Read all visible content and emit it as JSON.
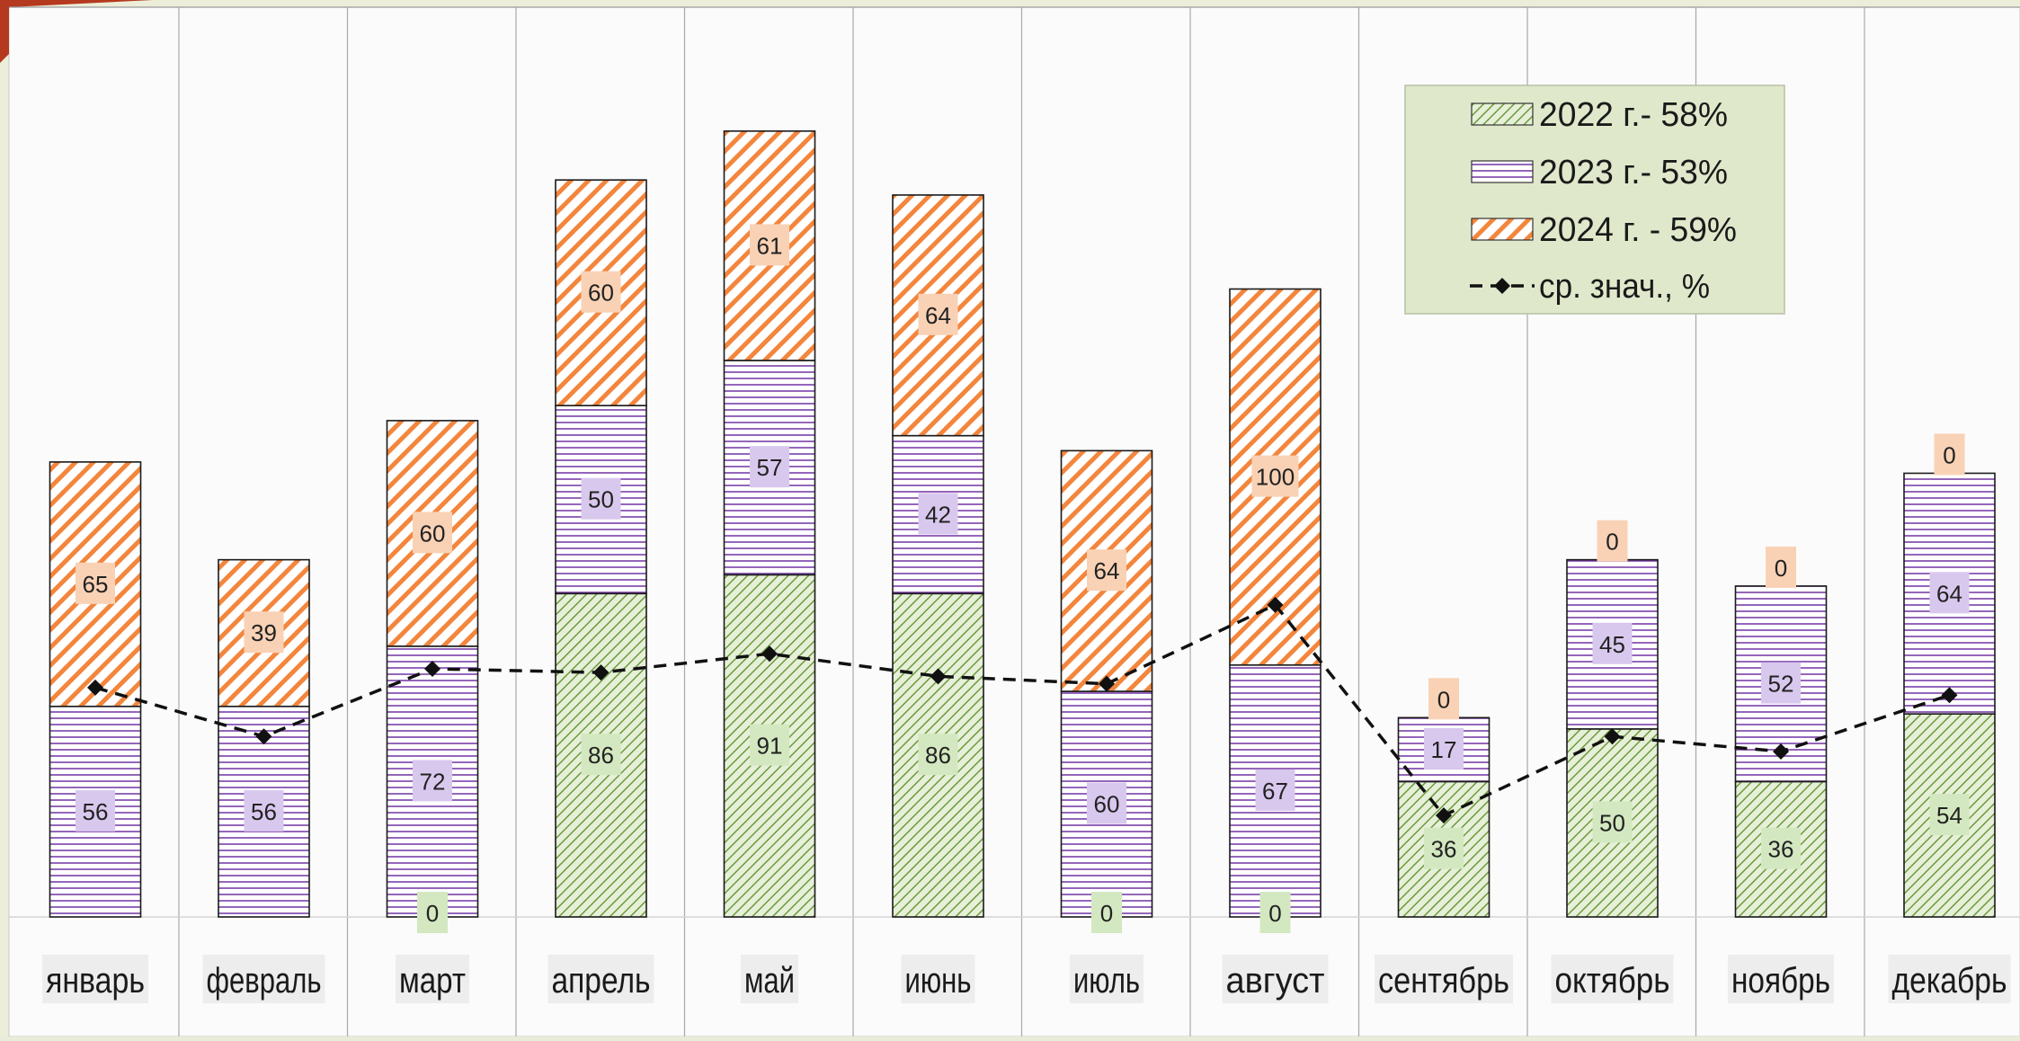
{
  "colors": {
    "frame": "#eceed9",
    "plot_bg": "#fbfbfb",
    "accent_corner": "#b5391f",
    "green": "#7fa84f",
    "green_label_bg": "#d3e8c0",
    "purple": "#7a3fa8",
    "purple_label_bg": "#d9c8ee",
    "orange": "#f3863d",
    "orange_label_bg": "#f9d2b6",
    "legend_bg": "#e0e8cb",
    "line": "#111111"
  },
  "chart_data": {
    "type": "bar",
    "stacked": true,
    "categories": [
      "январь",
      "февраль",
      "март",
      "апрель",
      "май",
      "июнь",
      "июль",
      "август",
      "сентябрь",
      "октябрь",
      "ноябрь",
      "декабрь"
    ],
    "series": [
      {
        "name": "2022 г.- 58%",
        "pattern": "diagonal-green",
        "values": [
          0,
          0,
          0,
          86,
          91,
          86,
          0,
          0,
          36,
          50,
          36,
          54
        ],
        "labels": [
          "",
          "",
          "0",
          "86",
          "91",
          "86",
          "0",
          "0",
          "36",
          "50",
          "36",
          "54"
        ]
      },
      {
        "name": "2023 г.- 53%",
        "pattern": "horizontal-purple",
        "values": [
          56,
          56,
          72,
          50,
          57,
          42,
          60,
          67,
          17,
          45,
          52,
          64
        ],
        "labels": [
          "56",
          "56",
          "72",
          "50",
          "57",
          "42",
          "60",
          "67",
          "17",
          "45",
          "52",
          "64"
        ]
      },
      {
        "name": "2024 г. - 59%",
        "pattern": "diagonal-orange",
        "values": [
          65,
          39,
          60,
          60,
          61,
          64,
          64,
          100,
          0,
          0,
          0,
          0
        ],
        "labels": [
          "65",
          "39",
          "60",
          "60",
          "61",
          "64",
          "64",
          "100",
          "0",
          "0",
          "0",
          "0"
        ]
      }
    ],
    "line_series": {
      "name": "ср. знач., %",
      "values": [
        61,
        48,
        66,
        65,
        70,
        64,
        62,
        83,
        27,
        48,
        44,
        59
      ]
    },
    "ylim": [
      0,
      230
    ],
    "legend_position": "top-right",
    "grid": "vertical-separators",
    "title": "",
    "xlabel": "",
    "ylabel": ""
  }
}
